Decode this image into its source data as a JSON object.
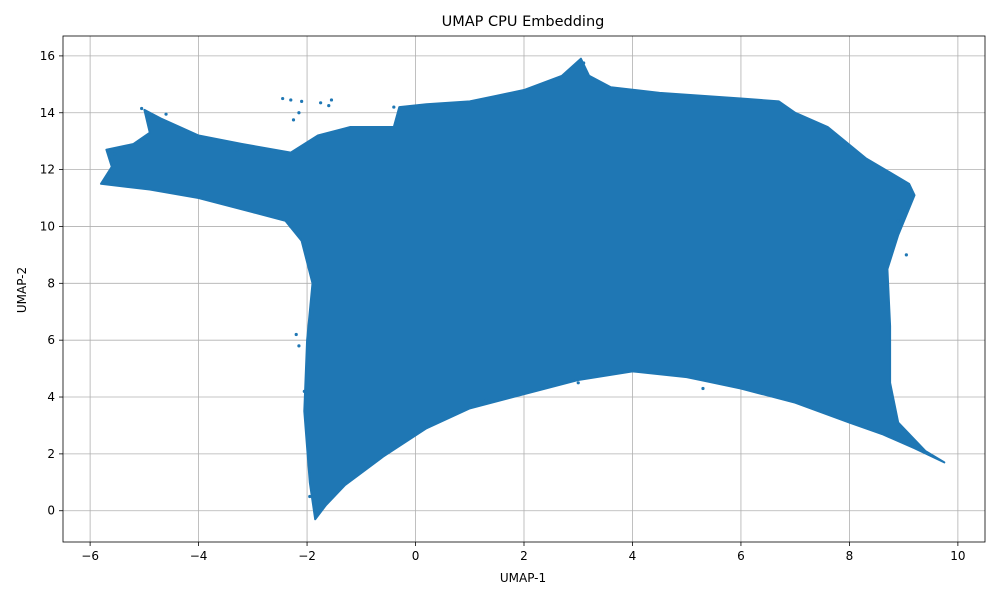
{
  "chart_data": {
    "type": "scatter",
    "title": "UMAP CPU Embedding",
    "xlabel": "UMAP-1",
    "ylabel": "UMAP-2",
    "xlim": [
      -6.5,
      10.5
    ],
    "ylim": [
      -1.1,
      16.7
    ],
    "xticks": [
      -6,
      -4,
      -2,
      0,
      2,
      4,
      6,
      8,
      10
    ],
    "xtick_labels": [
      "−6",
      "−4",
      "−2",
      "0",
      "2",
      "4",
      "6",
      "8",
      "10"
    ],
    "yticks": [
      0,
      2,
      4,
      6,
      8,
      10,
      12,
      14,
      16
    ],
    "ytick_labels": [
      "0",
      "2",
      "4",
      "6",
      "8",
      "10",
      "12",
      "14",
      "16"
    ],
    "grid": true,
    "legend": false,
    "series_color": "#1f77b4",
    "density_region": [
      [
        -1.85,
        -0.3
      ],
      [
        -1.65,
        0.2
      ],
      [
        -1.3,
        0.9
      ],
      [
        -0.6,
        1.9
      ],
      [
        0.2,
        2.9
      ],
      [
        1.0,
        3.6
      ],
      [
        2.0,
        4.1
      ],
      [
        3.0,
        4.6
      ],
      [
        4.0,
        4.9
      ],
      [
        5.0,
        4.7
      ],
      [
        6.0,
        4.3
      ],
      [
        7.0,
        3.8
      ],
      [
        8.0,
        3.1
      ],
      [
        8.6,
        2.7
      ],
      [
        9.2,
        2.2
      ],
      [
        9.75,
        1.7
      ],
      [
        9.4,
        2.1
      ],
      [
        8.9,
        3.1
      ],
      [
        8.75,
        4.5
      ],
      [
        8.75,
        6.5
      ],
      [
        8.7,
        8.5
      ],
      [
        8.9,
        9.7
      ],
      [
        9.2,
        11.1
      ],
      [
        9.1,
        11.5
      ],
      [
        8.3,
        12.4
      ],
      [
        7.6,
        13.5
      ],
      [
        7.0,
        14.0
      ],
      [
        6.7,
        14.4
      ],
      [
        6.0,
        14.5
      ],
      [
        4.5,
        14.7
      ],
      [
        3.6,
        14.9
      ],
      [
        3.2,
        15.3
      ],
      [
        3.05,
        15.9
      ],
      [
        2.7,
        15.3
      ],
      [
        2.0,
        14.8
      ],
      [
        1.5,
        14.6
      ],
      [
        1.0,
        14.4
      ],
      [
        0.2,
        14.3
      ],
      [
        -0.3,
        14.2
      ],
      [
        -0.4,
        13.5
      ],
      [
        -1.2,
        13.5
      ],
      [
        -1.8,
        13.2
      ],
      [
        -2.3,
        12.6
      ],
      [
        -3.2,
        12.9
      ],
      [
        -4.0,
        13.2
      ],
      [
        -4.7,
        13.8
      ],
      [
        -5.0,
        14.1
      ],
      [
        -4.9,
        13.3
      ],
      [
        -5.2,
        12.9
      ],
      [
        -5.7,
        12.7
      ],
      [
        -5.6,
        12.1
      ],
      [
        -5.8,
        11.5
      ],
      [
        -4.9,
        11.3
      ],
      [
        -4.0,
        11.0
      ],
      [
        -3.0,
        10.5
      ],
      [
        -2.4,
        10.2
      ],
      [
        -2.1,
        9.5
      ],
      [
        -1.9,
        8.0
      ],
      [
        -2.0,
        6.0
      ],
      [
        -2.05,
        3.5
      ],
      [
        -1.95,
        1.0
      ]
    ],
    "outlier_points": [
      [
        -2.45,
        14.5
      ],
      [
        -2.3,
        14.45
      ],
      [
        -2.1,
        14.4
      ],
      [
        -1.75,
        14.35
      ],
      [
        -1.55,
        14.45
      ],
      [
        -1.6,
        14.25
      ],
      [
        -2.15,
        14.0
      ],
      [
        -2.25,
        13.75
      ],
      [
        -3.3,
        12.7
      ],
      [
        -4.6,
        13.95
      ],
      [
        -5.05,
        14.15
      ],
      [
        -2.3,
        10.0
      ],
      [
        -2.15,
        9.8
      ],
      [
        -2.2,
        6.2
      ],
      [
        -2.15,
        5.8
      ],
      [
        -2.05,
        4.2
      ],
      [
        -1.95,
        0.5
      ],
      [
        1.3,
        3.9
      ],
      [
        3.0,
        4.5
      ],
      [
        5.3,
        4.3
      ],
      [
        7.5,
        3.5
      ],
      [
        8.9,
        10.2
      ],
      [
        9.05,
        9.0
      ],
      [
        9.1,
        10.8
      ],
      [
        7.9,
        12.9
      ],
      [
        3.1,
        15.75
      ],
      [
        2.95,
        15.6
      ],
      [
        -0.4,
        14.2
      ],
      [
        -5.55,
        12.55
      ],
      [
        -5.7,
        11.6
      ]
    ]
  }
}
